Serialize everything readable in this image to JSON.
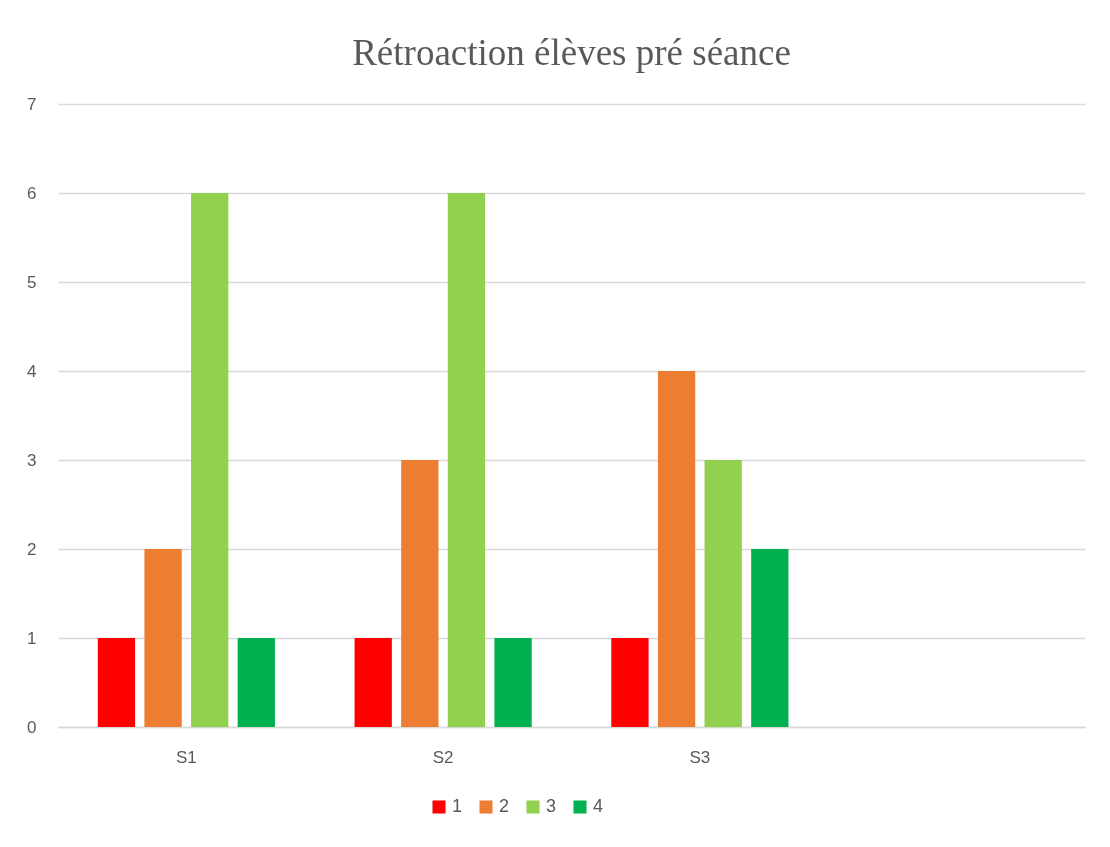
{
  "chart_data": {
    "type": "bar",
    "title": "Rétroaction élèves pré séance",
    "categories": [
      "S1",
      "S2",
      "S3",
      null
    ],
    "series": [
      {
        "name": "1",
        "color": "#ff0000",
        "values": [
          1,
          1,
          1,
          null
        ]
      },
      {
        "name": "2",
        "color": "#ed7d31",
        "values": [
          2,
          3,
          4,
          null
        ]
      },
      {
        "name": "3",
        "color": "#92d050",
        "values": [
          6,
          6,
          3,
          null
        ]
      },
      {
        "name": "4",
        "color": "#00b050",
        "values": [
          1,
          1,
          2,
          null
        ]
      }
    ],
    "ylim": [
      0,
      7
    ],
    "yticks": [
      0,
      1,
      2,
      3,
      4,
      5,
      6,
      7
    ],
    "grid": "y",
    "legend": "bottom"
  }
}
